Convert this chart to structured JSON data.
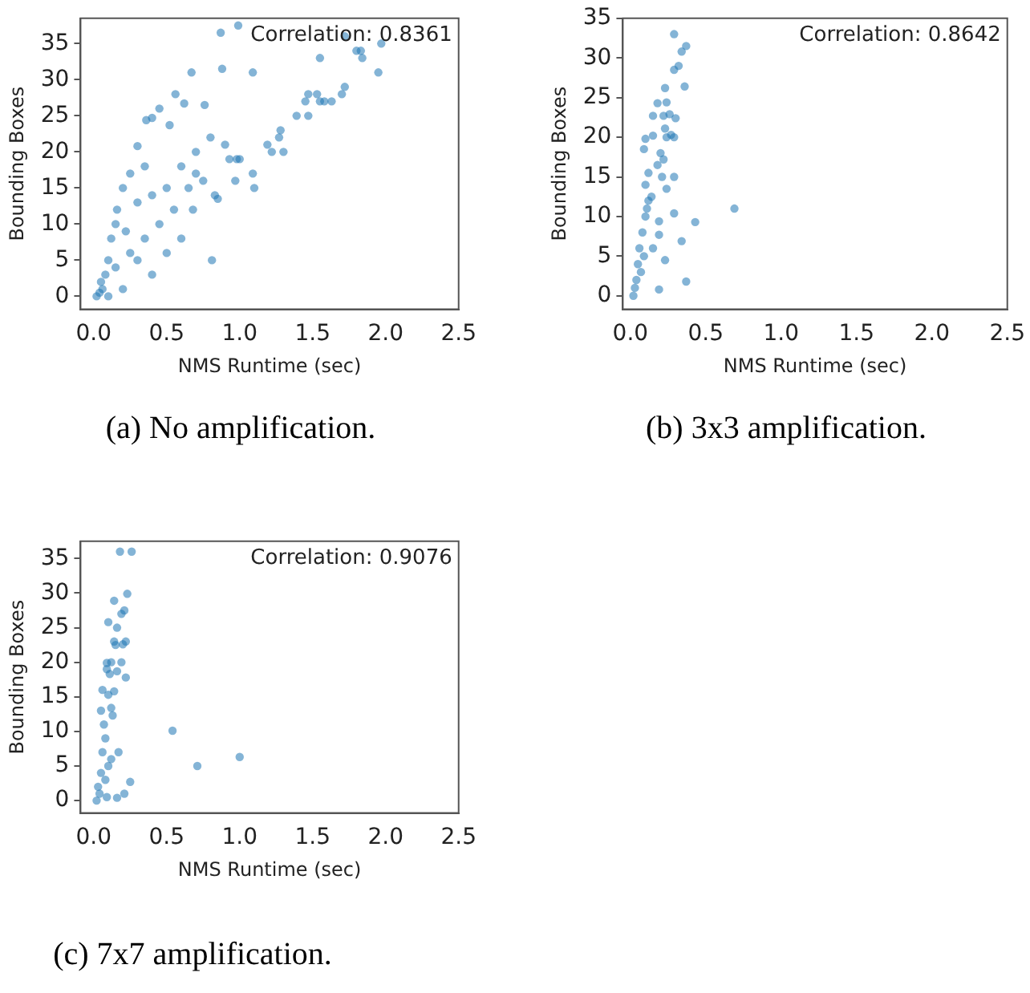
{
  "chart_data": [
    {
      "type": "scatter",
      "xlabel": "NMS Runtime (sec)",
      "ylabel": "Bounding Boxes",
      "annotations": [
        "Correlation: 0.8361",
        "(a) No amplification."
      ],
      "xlim": [
        -0.09,
        2.5
      ],
      "ylim": [
        -1.8,
        38.5
      ],
      "xticks": [
        {
          "value": 0,
          "label": "0.0"
        },
        {
          "value": 0.5,
          "label": "0.5"
        },
        {
          "value": 1,
          "label": "1.0"
        },
        {
          "value": 1.5,
          "label": "1.5"
        },
        {
          "value": 2,
          "label": "2.0"
        },
        {
          "value": 2.5,
          "label": "2.5"
        }
      ],
      "yticks": [
        0,
        5,
        10,
        15,
        20,
        25,
        30,
        35
      ],
      "grid": false,
      "legend": false,
      "marker": "circle",
      "series": [
        {
          "color": "#1f77b4",
          "x": [
            0.87,
            0.99,
            0.88,
            0.67,
            1.09,
            0.56,
            0.62,
            0.76,
            0.45,
            0.4,
            0.36,
            0.52,
            1.72,
            1.97,
            1.8,
            1.83,
            1.55,
            1.84,
            1.95,
            1.72,
            1.7,
            1.47,
            1.53,
            1.45,
            1.55,
            1.58,
            1.63,
            1.39,
            1.47,
            1.28,
            1.27,
            1.19,
            1.22,
            1.3,
            1.09,
            1.1,
            0.97,
            0.81,
            0.85,
            0.83,
            0.93,
            0.98,
            0.7,
            0.68,
            0.6,
            0.5,
            0.3,
            0.3,
            0.2,
            0.15,
            0.1,
            0.05,
            0.02,
            0.1,
            0.2,
            0.4,
            0.3,
            0.45,
            0.5,
            0.6,
            0.7,
            0.8,
            0.9,
            0.25,
            0.35,
            0.12,
            0.08,
            0.06,
            0.16,
            0.22,
            0.4,
            0.55,
            0.65,
            0.75,
            1.0,
            0.04,
            0.15,
            0.25,
            0.35
          ],
          "values": [
            36.5,
            37.5,
            31.5,
            31,
            31,
            28,
            26.7,
            26.5,
            26,
            24.7,
            24.4,
            23.7,
            36,
            35,
            34,
            34,
            33,
            33,
            31,
            29,
            28,
            28,
            28,
            27,
            27,
            27,
            27,
            25,
            25,
            23,
            22,
            21,
            20,
            20,
            17,
            15,
            16,
            5,
            13.5,
            14,
            19,
            19,
            17,
            12,
            8,
            6,
            20.8,
            13,
            15,
            10,
            5,
            2,
            0,
            0,
            1,
            3,
            5,
            10,
            15,
            18,
            20,
            22,
            21,
            17,
            18,
            8,
            3,
            1,
            12,
            9,
            14,
            12,
            15,
            16,
            19,
            0.5,
            4,
            6,
            8
          ]
        }
      ]
    },
    {
      "type": "scatter",
      "xlabel": "NMS Runtime (sec)",
      "ylabel": "Bounding Boxes",
      "annotations": [
        "Correlation: 0.8642",
        "(b) 3x3 amplification."
      ],
      "xlim": [
        -0.05,
        2.5
      ],
      "ylim": [
        -1.7,
        35
      ],
      "xticks": [
        {
          "value": 0,
          "label": "0.0"
        },
        {
          "value": 0.5,
          "label": "0.5"
        },
        {
          "value": 1,
          "label": "1.0"
        },
        {
          "value": 1.5,
          "label": "1.5"
        },
        {
          "value": 2,
          "label": "2.0"
        },
        {
          "value": 2.5,
          "label": "2.5"
        }
      ],
      "yticks": [
        0,
        5,
        10,
        15,
        20,
        25,
        30,
        35
      ],
      "grid": false,
      "legend": false,
      "marker": "circle",
      "series": [
        {
          "color": "#1f77b4",
          "x": [
            0.29,
            0.37,
            0.34,
            0.32,
            0.29,
            0.23,
            0.36,
            0.18,
            0.24,
            0.15,
            0.22,
            0.26,
            0.3,
            0.23,
            0.24,
            0.27,
            0.29,
            0.09,
            0.15,
            0.1,
            0.2,
            0.22,
            0.18,
            0.21,
            0.29,
            0.24,
            0.29,
            0.43,
            0.69,
            0.34,
            0.37,
            0.19,
            0.23,
            0.19,
            0.19,
            0.12,
            0.1,
            0.08,
            0.06,
            0.05,
            0.04,
            0.02,
            0.1,
            0.12,
            0.14,
            0.07,
            0.09,
            0.15,
            0.03,
            0.11
          ],
          "values": [
            33,
            31.5,
            30.8,
            29,
            28.5,
            26.2,
            26.4,
            24.3,
            24.4,
            22.7,
            22.7,
            22.9,
            22.4,
            21.1,
            20,
            20.3,
            20,
            18.5,
            20.2,
            19.8,
            18,
            17.2,
            16.5,
            15,
            15,
            13.5,
            10.4,
            9.3,
            11,
            6.9,
            1.8,
            0.8,
            4.5,
            7.7,
            9.4,
            12,
            10,
            8,
            6,
            4,
            2,
            0,
            14,
            15.5,
            12.5,
            3,
            5,
            6,
            1,
            11
          ]
        }
      ]
    },
    {
      "type": "scatter",
      "xlabel": "NMS Runtime (sec)",
      "ylabel": "Bounding Boxes",
      "annotations": [
        "Correlation: 0.9076",
        "(c) 7x7 amplification."
      ],
      "xlim": [
        -0.09,
        2.5
      ],
      "ylim": [
        -1.8,
        37.5
      ],
      "xticks": [
        {
          "value": 0,
          "label": "0.0"
        },
        {
          "value": 0.5,
          "label": "0.5"
        },
        {
          "value": 1,
          "label": "1.0"
        },
        {
          "value": 1.5,
          "label": "1.5"
        },
        {
          "value": 2,
          "label": "2.0"
        },
        {
          "value": 2.5,
          "label": "2.5"
        }
      ],
      "yticks": [
        0,
        5,
        10,
        15,
        20,
        25,
        30,
        35
      ],
      "grid": false,
      "legend": false,
      "marker": "circle",
      "series": [
        {
          "color": "#1f77b4",
          "x": [
            0.18,
            0.26,
            0.23,
            0.14,
            0.21,
            0.19,
            0.1,
            0.16,
            0.14,
            0.22,
            0.2,
            0.15,
            0.12,
            0.09,
            0.19,
            0.09,
            0.22,
            0.16,
            0.11,
            0.06,
            0.14,
            0.1,
            0.12,
            0.13,
            0.05,
            0.54,
            0.71,
            1.0,
            0.17,
            0.25,
            0.21,
            0.16,
            0.1,
            0.08,
            0.06,
            0.05,
            0.03,
            0.02,
            0.04,
            0.07,
            0.08,
            0.12,
            0.09
          ],
          "values": [
            36,
            36,
            29.9,
            28.9,
            27.5,
            27,
            25.8,
            25,
            23,
            23,
            22.6,
            22.5,
            20,
            19.9,
            20,
            19,
            17.8,
            18.7,
            18.3,
            16,
            15.8,
            15.3,
            13.4,
            12.3,
            13,
            10.1,
            5,
            6.3,
            7,
            2.7,
            1,
            0.4,
            5,
            9,
            7,
            4,
            2,
            0,
            1,
            11,
            3,
            6,
            0.5
          ]
        }
      ]
    }
  ]
}
